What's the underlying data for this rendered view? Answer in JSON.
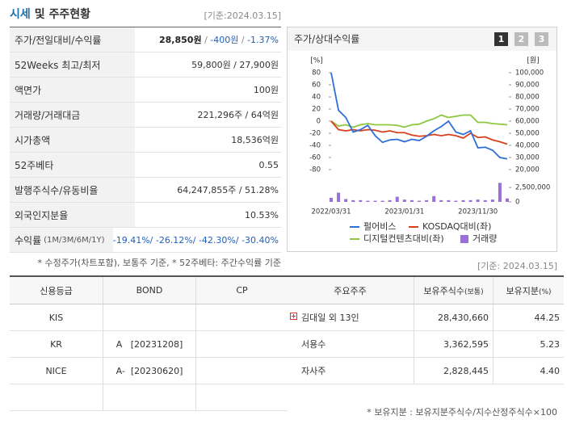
{
  "header": {
    "title": "시세",
    "title_rest": "및 주주현황",
    "date": "[기준:2024.03.15]"
  },
  "price_table": {
    "rows": [
      {
        "label": "주가/전일대비/수익률",
        "parts": [
          {
            "text": "28,850원",
            "color": "#222222",
            "bold": true
          },
          {
            "text": " / ",
            "color": "#888888"
          },
          {
            "text": "-400원",
            "color": "#1f5fbf"
          },
          {
            "text": " / ",
            "color": "#888888"
          },
          {
            "text": "-1.37%",
            "color": "#1f5fbf"
          }
        ]
      },
      {
        "label": "52Weeks 최고/최저",
        "value": "59,800원 / 27,900원"
      },
      {
        "label": "액면가",
        "value": "100원"
      },
      {
        "label": "거래량/거래대금",
        "value": "221,296주 / 64억원"
      },
      {
        "label": "시가총액",
        "value": "18,536억원"
      },
      {
        "label": "52주베타",
        "value": "0.55"
      },
      {
        "label": "발행주식수/유동비율",
        "value": "64,247,855주 / 51.28%"
      },
      {
        "label": "외국인지분율",
        "value": "10.53%"
      },
      {
        "label": "수익률",
        "sublabel": "(1M/3M/6M/1Y)",
        "value": "-19.41%/ -26.12%/ -42.30%/ -30.40%",
        "color": "#1f5fbf"
      }
    ],
    "note": "* 수정주가(차트포함), 보통주 기준, * 52주베타: 주간수익률 기준"
  },
  "chart_data": {
    "type": "line",
    "title": "주가/상대수익률",
    "buttons": [
      "1",
      "2",
      "3"
    ],
    "categories": [
      "2022/03/31",
      null,
      null,
      null,
      null,
      null,
      null,
      null,
      null,
      null,
      "2023/01/31",
      null,
      null,
      null,
      null,
      null,
      null,
      null,
      null,
      null,
      "2023/11/30",
      null,
      null,
      null,
      null
    ],
    "ylabel": "[%]",
    "y2label": "[원]",
    "ylim": [
      -80,
      80
    ],
    "yticks": [
      80,
      60,
      40,
      20,
      0,
      -20,
      -40,
      -60,
      -80
    ],
    "y2lim": [
      20000,
      100000
    ],
    "y2ticks": [
      {
        "value": 100000,
        "label": "100,000"
      },
      {
        "value": 90000,
        "label": "90,000"
      },
      {
        "value": 80000,
        "label": "80,000"
      },
      {
        "value": 70000,
        "label": "70,000"
      },
      {
        "value": 60000,
        "label": "60,000"
      },
      {
        "value": 50000,
        "label": "50,000"
      },
      {
        "value": 40000,
        "label": "40,000"
      },
      {
        "value": 30000,
        "label": "30,000"
      },
      {
        "value": 20000,
        "label": "20,000"
      }
    ],
    "y3lim": [
      0,
      3500000
    ],
    "y3ticks": [
      {
        "value": 2500000,
        "label": "2,500,000"
      },
      0
    ],
    "grid": false,
    "series": [
      {
        "name": "펄어비스",
        "color": "#2e6fd8",
        "axis": "y2",
        "values": [
          100000,
          69000,
          63000,
          51000,
          53000,
          56500,
          48000,
          42500,
          44500,
          45000,
          43000,
          45000,
          44000,
          47500,
          52000,
          55500,
          60000,
          51000,
          49000,
          52000,
          38000,
          38500,
          36000,
          30000,
          28850
        ]
      },
      {
        "name": "KOSDAQ대비(좌)",
        "color": "#d6401c",
        "values": [
          0,
          -14,
          -16,
          -14,
          -16,
          -14,
          -15,
          -18,
          -16,
          -19,
          -19,
          -23,
          -25,
          -24,
          -22,
          -24,
          -22,
          -24,
          -28,
          -20,
          -27,
          -26,
          -31,
          -34,
          -38
        ]
      },
      {
        "name": "디지털컨텐츠대비(좌)",
        "color": "#8dc63f",
        "values": [
          0,
          -8,
          -6,
          -10,
          -6,
          -4,
          -6,
          -6,
          -6,
          -7,
          -10,
          -6,
          -5,
          0,
          4,
          10,
          6,
          8,
          10,
          10,
          -2,
          -2,
          -4,
          -5,
          -6
        ]
      },
      {
        "name": "거래량",
        "color": "#9a6fd6",
        "type": "bar",
        "axis": "y3",
        "values": [
          700000,
          1600000,
          500000,
          300000,
          300000,
          200000,
          200000,
          200000,
          300000,
          900000,
          400000,
          300000,
          200000,
          300000,
          1000000,
          300000,
          300000,
          200000,
          300000,
          300000,
          400000,
          300000,
          400000,
          3300000,
          600000
        ]
      }
    ]
  },
  "rating_table": {
    "headers": [
      "신용등급",
      "BOND",
      "CP"
    ],
    "rows": [
      [
        "KIS",
        null,
        null
      ],
      [
        "KR",
        "A   [20231208]",
        null
      ],
      [
        "NICE",
        "A-  [20230620]",
        null
      ],
      [
        null,
        null,
        null
      ]
    ]
  },
  "shareholders": {
    "date": "[기준: 2024.03.15]",
    "headers": [
      [
        "주요주주"
      ],
      [
        "보유주식수",
        "(보통)"
      ],
      [
        "보유지분",
        "(%)"
      ]
    ],
    "rows": [
      [
        "김대일 외 13인",
        "28,430,660",
        "44.25"
      ],
      [
        "서용수",
        "3,362,595",
        "5.23"
      ],
      [
        "자사주",
        "2,828,445",
        "4.40"
      ]
    ],
    "note": "* 보유지분 : 보유지분주식수/지수산정주식수×100"
  }
}
